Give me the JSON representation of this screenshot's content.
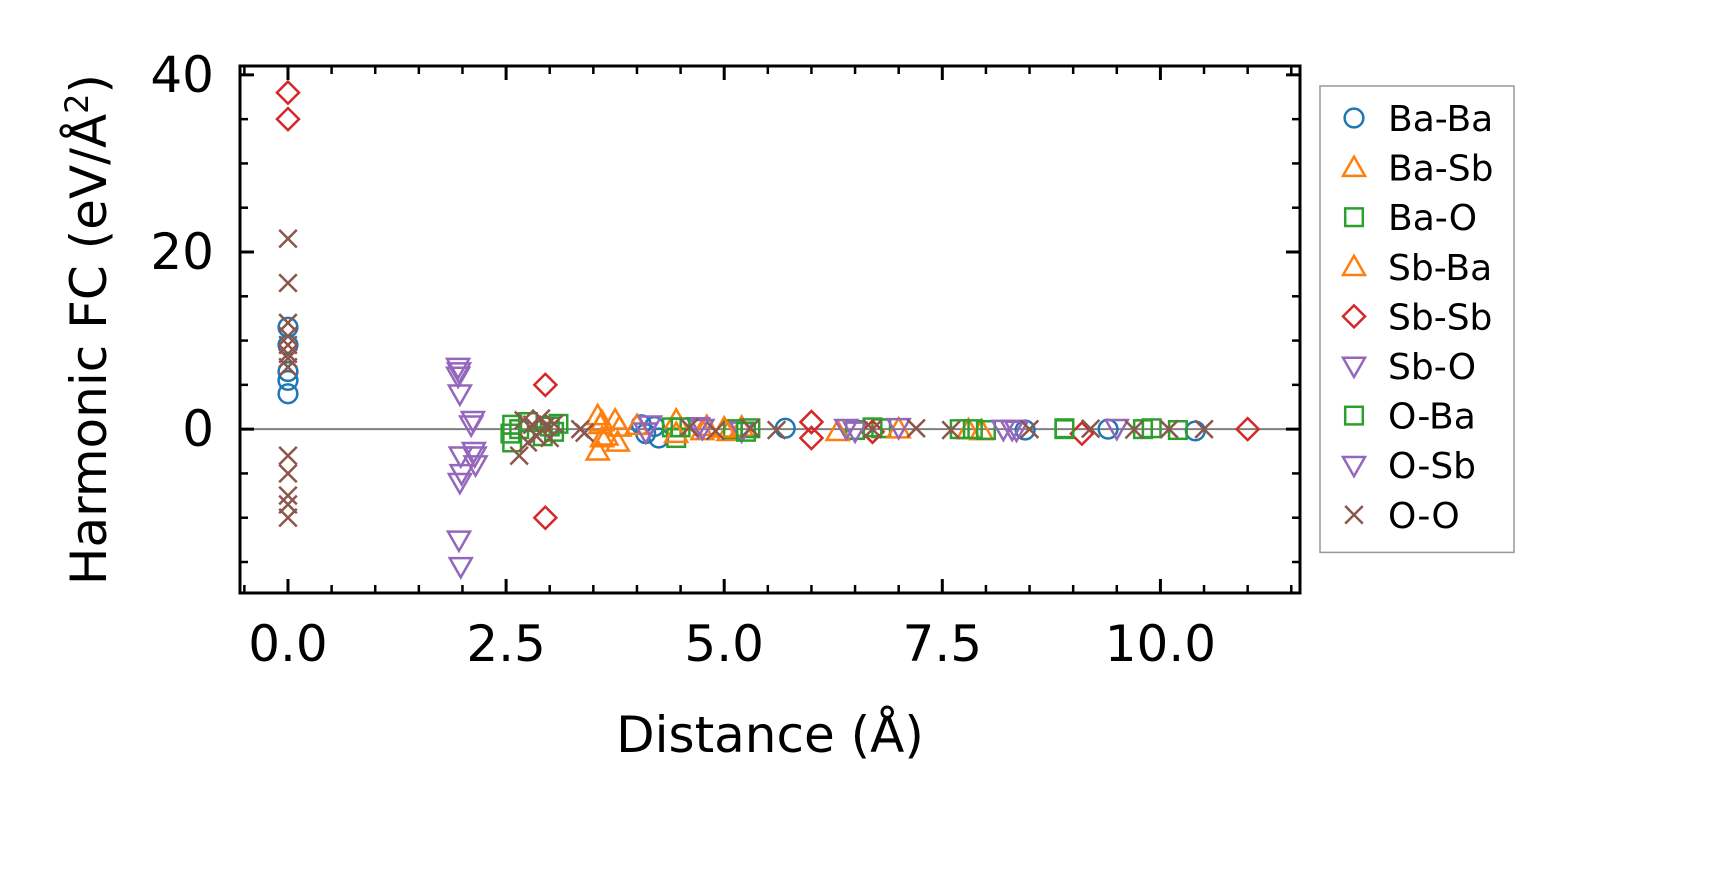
{
  "chart_data": {
    "type": "scatter",
    "title": "",
    "xlabel": "Distance (Å)",
    "ylabel_main": "Harmonic FC (eV/Å",
    "ylabel_sup": "2",
    "ylabel_close": ")",
    "xlim": [
      -0.55,
      11.6
    ],
    "ylim": [
      -18.5,
      41
    ],
    "xticks": [
      0.0,
      2.5,
      5.0,
      7.5,
      10.0
    ],
    "xtick_labels": [
      "0.0",
      "2.5",
      "5.0",
      "7.5",
      "10.0"
    ],
    "yticks": [
      0,
      20,
      40
    ],
    "ytick_labels": [
      "0",
      "20",
      "40"
    ],
    "zero_line": true,
    "legend_position": "outside-right",
    "series": [
      {
        "name": "Ba-Ba",
        "marker": "circle",
        "color": "#1f77b4",
        "x": [
          0.0,
          0.0,
          0.0,
          0.0,
          0.0,
          4.05,
          4.1,
          4.2,
          4.25,
          5.7,
          8.45,
          9.4,
          10.4
        ],
        "y": [
          4.0,
          5.5,
          6.5,
          9.5,
          11.5,
          0.5,
          -0.5,
          0.3,
          -1.0,
          0.1,
          -0.1,
          0.0,
          -0.2
        ]
      },
      {
        "name": "Ba-Sb",
        "marker": "triangle-up",
        "color": "#ff7f0e",
        "x": [
          3.55,
          3.55,
          3.6,
          3.6,
          3.75,
          3.78,
          4.45,
          4.8,
          5.05,
          5.2,
          7.8,
          7.95
        ],
        "y": [
          1.5,
          -2.5,
          0.8,
          -1.0,
          1.0,
          -1.5,
          1.0,
          0.3,
          -0.3,
          0.2,
          -0.1,
          -0.2
        ]
      },
      {
        "name": "Ba-O",
        "marker": "square",
        "color": "#2ca02c",
        "x": [
          2.57,
          2.57,
          2.65,
          2.75,
          2.92,
          3.0,
          3.05,
          4.4,
          4.45,
          5.1,
          5.3,
          6.5,
          6.8,
          7.7,
          8.0,
          8.9,
          9.9
        ],
        "y": [
          0.5,
          -1.5,
          0.0,
          0.8,
          -0.8,
          0.3,
          -0.3,
          0.2,
          -1.0,
          0.0,
          0.1,
          -0.1,
          0.1,
          0.0,
          -0.1,
          0.0,
          0.1
        ]
      },
      {
        "name": "Sb-Ba",
        "marker": "triangle-up",
        "color": "#ff7f0e",
        "x": [
          3.58,
          3.65,
          3.8,
          4.0,
          4.45,
          4.75,
          5.0,
          6.3,
          7.0
        ],
        "y": [
          0.5,
          -0.8,
          0.2,
          0.4,
          -0.5,
          -0.2,
          0.1,
          -0.3,
          0.0
        ]
      },
      {
        "name": "Sb-Sb",
        "marker": "diamond",
        "color": "#d62728",
        "x": [
          0.0,
          0.0,
          2.95,
          2.95,
          6.0,
          6.0,
          6.7,
          9.1,
          11.0
        ],
        "y": [
          38.0,
          35.0,
          5.0,
          -10.0,
          0.8,
          -1.0,
          -0.3,
          -0.5,
          0.0
        ]
      },
      {
        "name": "Sb-O",
        "marker": "triangle-down",
        "color": "#9467bd",
        "x": [
          1.95,
          1.95,
          1.97,
          1.98,
          1.97,
          1.96,
          1.98,
          2.12,
          2.14,
          2.15,
          4.15,
          4.7,
          5.2,
          6.4,
          7.0,
          8.2,
          8.35,
          9.5
        ],
        "y": [
          7.0,
          6.0,
          4.0,
          -3.0,
          -6.0,
          -12.5,
          -15.5,
          1.0,
          -3.0,
          -4.0,
          0.5,
          0.3,
          -0.2,
          0.1,
          0.2,
          0.0,
          -0.1,
          0.1
        ]
      },
      {
        "name": "O-Ba",
        "marker": "square",
        "color": "#2ca02c",
        "x": [
          2.55,
          3.1,
          4.5,
          5.25,
          6.7,
          7.85,
          8.9,
          9.8,
          10.2
        ],
        "y": [
          -0.5,
          0.6,
          0.2,
          -0.3,
          0.2,
          0.0,
          0.1,
          0.0,
          -0.1
        ]
      },
      {
        "name": "O-Sb",
        "marker": "triangle-down",
        "color": "#9467bd",
        "x": [
          1.96,
          1.99,
          2.1,
          2.13,
          4.1,
          4.75,
          6.5,
          8.3
        ],
        "y": [
          6.5,
          -5.0,
          0.5,
          -2.5,
          -0.3,
          0.1,
          -0.2,
          0.0
        ]
      },
      {
        "name": "O-O",
        "marker": "x",
        "color": "#8c564b",
        "x": [
          0.0,
          0.0,
          0.0,
          0.0,
          0.0,
          0.0,
          0.0,
          0.0,
          0.0,
          0.0,
          0.0,
          0.0,
          0.0,
          2.65,
          2.7,
          2.75,
          2.8,
          2.85,
          2.9,
          2.95,
          3.0,
          3.05,
          3.35,
          3.4,
          4.6,
          4.9,
          5.3,
          5.6,
          6.7,
          7.2,
          7.6,
          8.5,
          9.2,
          9.7,
          10.1,
          10.5
        ],
        "y": [
          21.5,
          16.5,
          12.0,
          10.5,
          9.5,
          8.5,
          7.0,
          -3.0,
          -5.0,
          -7.5,
          -8.5,
          -10.0,
          8.0,
          -3.0,
          1.0,
          -1.5,
          0.5,
          -0.8,
          1.2,
          0.3,
          -1.0,
          0.6,
          0.0,
          -0.4,
          0.2,
          -0.2,
          0.1,
          -0.1,
          0.0,
          0.1,
          -0.1,
          0.0,
          0.05,
          -0.05,
          0.0,
          0.0
        ]
      }
    ]
  }
}
